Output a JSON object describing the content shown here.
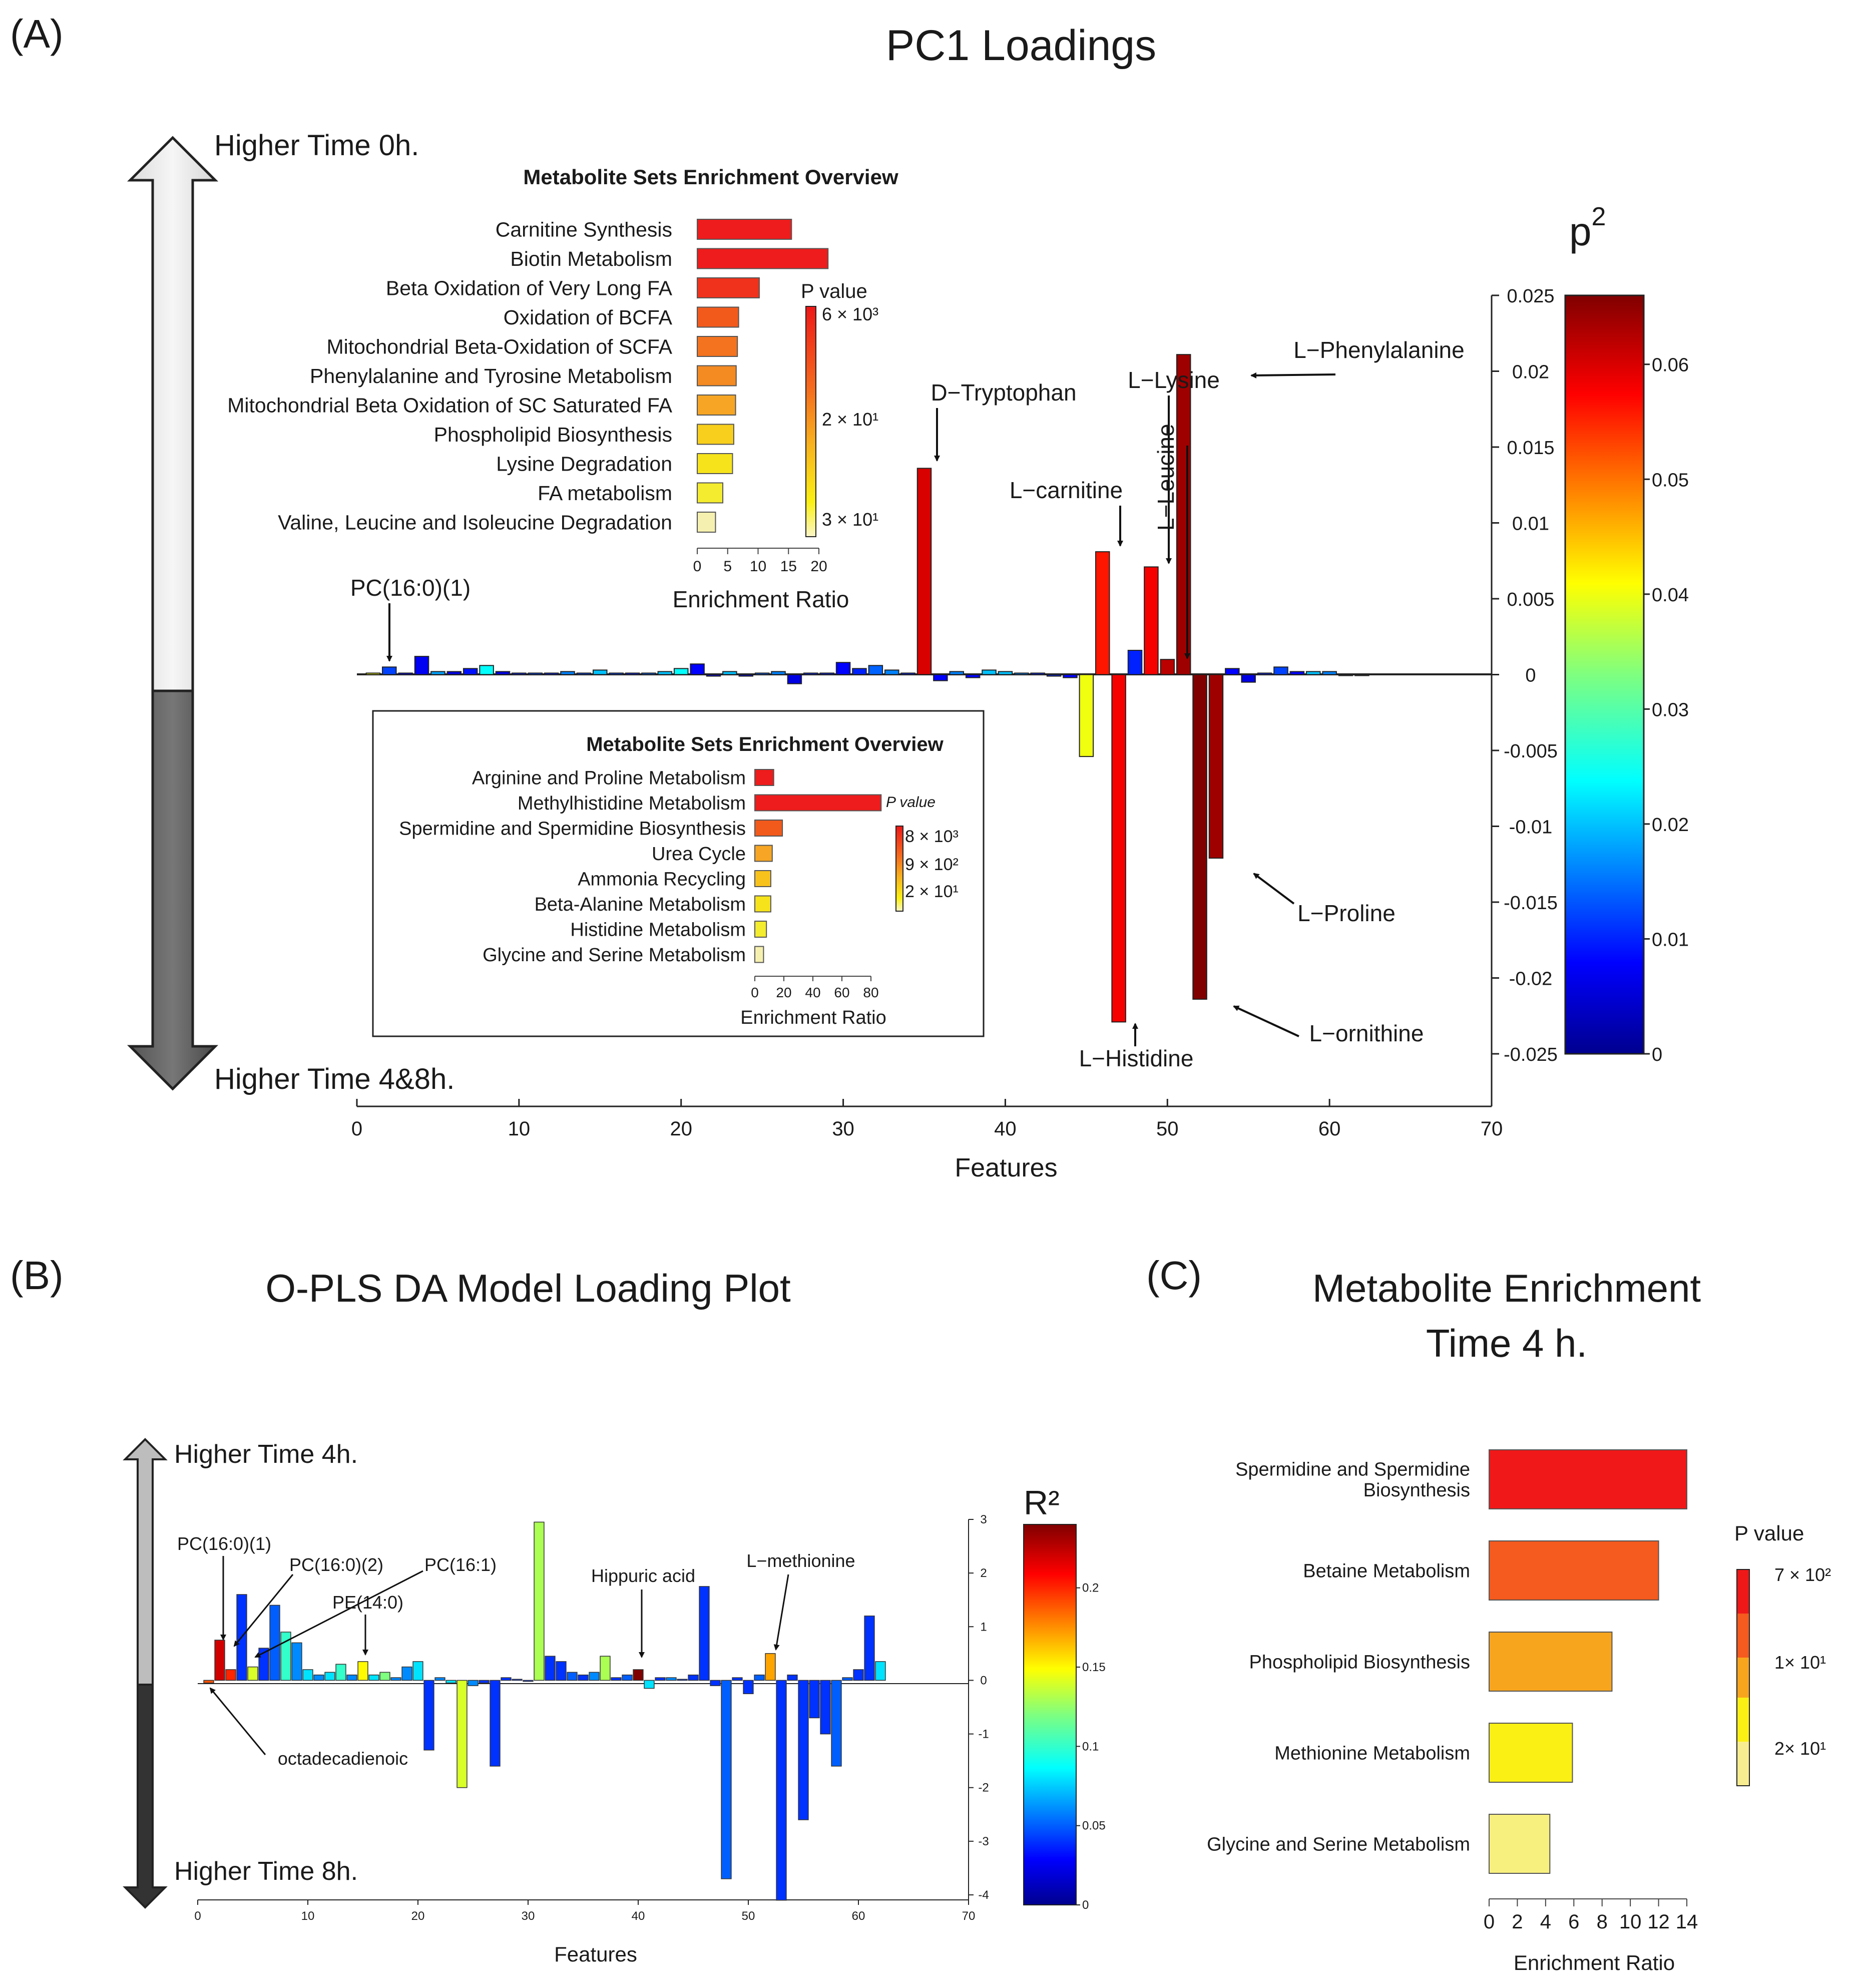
{
  "panels": {
    "a_label": "(A)",
    "b_label": "(B)",
    "c_label": "(C)"
  },
  "chart_data": [
    {
      "id": "pc1",
      "type": "bar",
      "title": "PC1 Loadings",
      "xlabel": "Features",
      "ylabel": "",
      "xlim": [
        0,
        70
      ],
      "ylim": [
        -0.025,
        0.025
      ],
      "xticks": [
        0,
        10,
        20,
        30,
        40,
        50,
        60,
        70
      ],
      "yticks": [
        -0.025,
        -0.02,
        -0.015,
        -0.01,
        -0.005,
        0,
        0.005,
        0.01,
        0.015,
        0.02,
        0.025
      ],
      "ytick_labels": [
        "-0.025",
        "-0.02",
        "-0.015",
        "-0.01",
        "-0.005",
        "0",
        "0.005",
        "0.01",
        "0.015",
        "0.02",
        "0.025"
      ],
      "top_arrow_label": "Higher Time 0h.",
      "bottom_arrow_label": "Higher Time 4&8h.",
      "colorbar": {
        "title": "p",
        "title_sup": "2",
        "range": [
          0,
          0.066
        ],
        "ticks": [
          0,
          0.01,
          0.02,
          0.03,
          0.04,
          0.05,
          0.06
        ],
        "tick_labels": [
          "0",
          "0.01",
          "0.02",
          "0.03",
          "0.04",
          "0.05",
          "0.06"
        ]
      },
      "x": [
        1,
        2,
        3,
        4,
        5,
        6,
        7,
        8,
        9,
        10,
        11,
        12,
        13,
        14,
        15,
        16,
        17,
        18,
        19,
        20,
        21,
        22,
        23,
        24,
        25,
        26,
        27,
        28,
        29,
        30,
        31,
        32,
        33,
        34,
        35,
        36,
        37,
        38,
        39,
        40,
        41,
        42,
        43,
        44,
        45,
        46,
        47,
        48,
        49,
        50,
        51,
        52,
        53,
        54,
        55,
        56,
        57,
        58,
        59,
        60,
        61,
        62
      ],
      "values": [
        0.0001,
        0.0005,
        0.0001,
        0.0012,
        0.0002,
        0.0002,
        0.0004,
        0.0006,
        0.0002,
        0.0001,
        0.0001,
        0.0001,
        0.0002,
        0.0001,
        0.0003,
        0.0001,
        0.0001,
        0.0001,
        0.0002,
        0.0004,
        0.0007,
        -0.0001,
        0.0002,
        -0.0001,
        0.0001,
        0.0002,
        -0.0006,
        0.0001,
        0.0001,
        0.0008,
        0.0004,
        0.0006,
        0.0003,
        0.0001,
        0.0136,
        -0.0004,
        0.0002,
        -0.0002,
        0.0003,
        0.0002,
        0.0001,
        0.0001,
        -0.0001,
        -0.0002,
        -0.0054,
        0.0081,
        -0.0229,
        0.0016,
        0.0071,
        0.001,
        0.0211,
        -0.0214,
        -0.0121,
        0.0004,
        -0.0005,
        0.0001,
        0.0005,
        0.0002,
        0.0002,
        0.0002,
        0,
        0
      ],
      "colors": [
        0.04,
        0.012,
        0.008,
        0.007,
        0.018,
        0.006,
        0.009,
        0.024,
        0.006,
        0.01,
        0.012,
        0.01,
        0.016,
        0.012,
        0.02,
        0.012,
        0.01,
        0.014,
        0.02,
        0.024,
        0.008,
        0.008,
        0.02,
        0.006,
        0.014,
        0.016,
        0.006,
        0.01,
        0.01,
        0.008,
        0.01,
        0.014,
        0.016,
        0.01,
        0.06,
        0.008,
        0.016,
        0.008,
        0.02,
        0.02,
        0.016,
        0.01,
        0.01,
        0.008,
        0.04,
        0.056,
        0.058,
        0.01,
        0.058,
        0.062,
        0.064,
        0.066,
        0.064,
        0.008,
        0.006,
        0.01,
        0.012,
        0.008,
        0.02,
        0.016,
        0.012,
        0.012
      ],
      "annotations": [
        {
          "text": "PC(16:0)(1)",
          "feature": 2
        },
        {
          "text": "D−Tryptophan",
          "feature": 36
        },
        {
          "text": "L−carnitine",
          "feature": 47
        },
        {
          "text": "L−Lysine",
          "feature": 50
        },
        {
          "text": "L−Leucine",
          "feature": 51
        },
        {
          "text": "L−Phenylalanine",
          "feature": 54
        },
        {
          "text": "L−Proline",
          "feature": 55
        },
        {
          "text": "L−ornithine",
          "feature": 53
        },
        {
          "text": "L−Histidine",
          "feature": 48
        }
      ]
    },
    {
      "id": "enrich_top",
      "type": "bar",
      "orientation": "horizontal",
      "title": "Metabolite Sets Enrichment Overview",
      "xlabel": "Enrichment Ratio",
      "xlim": [
        0,
        20
      ],
      "xticks": [
        0,
        5,
        10,
        15,
        20
      ],
      "categories": [
        "Carnitine Synthesis",
        "Biotin Metabolism",
        "Beta Oxidation of Very Long FA",
        "Oxidation of BCFA",
        "Mitochondrial Beta-Oxidation of SCFA",
        "Phenylalanine and Tyrosine Metabolism",
        "Mitochondrial Beta Oxidation of SC Saturated FA",
        "Phospholipid Biosynthesis",
        "Lysine Degradation",
        "FA metabolism",
        "Valine, Leucine and Isoleucine Degradation"
      ],
      "values": [
        15.5,
        21.5,
        10.2,
        6.8,
        6.6,
        6.4,
        6.3,
        6.0,
        5.8,
        4.2,
        3.0
      ],
      "colors": [
        "#ee1c1c",
        "#ee1c1c",
        "#f0321c",
        "#f25a1c",
        "#f3731f",
        "#f48a22",
        "#f6a624",
        "#f8cf1c",
        "#f6e31c",
        "#f4ec2e",
        "#f6f0b0"
      ],
      "pvalue_title": "P value",
      "pvalue_ticks": [
        "6 × 10³",
        "2 × 10¹",
        "3 × 10¹"
      ]
    },
    {
      "id": "enrich_mid",
      "type": "bar",
      "orientation": "horizontal",
      "title": "Metabolite Sets Enrichment Overview",
      "xlabel": "Enrichment Ratio",
      "xlim": [
        0,
        80
      ],
      "xticks": [
        0,
        20,
        40,
        60,
        80
      ],
      "categories": [
        "Arginine and Proline Metabolism",
        "Methylhistidine Metabolism",
        "Spermidine and Spermidine Biosynthesis",
        "Urea Cycle",
        "Ammonia Recycling",
        "Beta-Alanine Metabolism",
        "Histidine Metabolism",
        "Glycine and Serine Metabolism"
      ],
      "values": [
        13,
        87,
        19,
        12,
        11,
        11,
        8,
        6
      ],
      "colors": [
        "#ee1c1c",
        "#ee1c1c",
        "#f25a1c",
        "#f6a624",
        "#f8c21c",
        "#f6e31c",
        "#f4ec2e",
        "#f6f0b0"
      ],
      "pvalue_title": "P value",
      "pvalue_ticks": [
        "8 × 10³",
        "9 × 10²",
        "2 × 10¹"
      ]
    },
    {
      "id": "opls",
      "type": "bar",
      "title": "O-PLS DA Model Loading Plot",
      "xlabel": "Features",
      "xlim": [
        0,
        70
      ],
      "ylim": [
        -4,
        3
      ],
      "xticks": [
        0,
        10,
        20,
        30,
        40,
        50,
        60,
        70
      ],
      "yticks": [
        -4,
        -3,
        -2,
        -1,
        0,
        1,
        2,
        3
      ],
      "top_arrow_label": "Higher Time 4h.",
      "bottom_arrow_label": "Higher Time 8h.",
      "colorbar": {
        "title": "R²",
        "range": [
          0,
          0.24
        ],
        "ticks": [
          0,
          0.05,
          0.1,
          0.15,
          0.2
        ],
        "tick_labels": [
          "0",
          "0.05",
          "0.1",
          "0.15",
          "0.2"
        ]
      },
      "x": [
        1,
        2,
        3,
        4,
        5,
        6,
        7,
        8,
        9,
        10,
        11,
        12,
        13,
        14,
        15,
        16,
        17,
        18,
        19,
        20,
        21,
        22,
        23,
        24,
        25,
        26,
        27,
        28,
        29,
        30,
        31,
        32,
        33,
        34,
        35,
        36,
        37,
        38,
        39,
        40,
        41,
        42,
        43,
        44,
        45,
        46,
        47,
        48,
        49,
        50,
        51,
        52,
        53,
        54,
        55,
        56,
        57,
        58,
        59,
        60,
        61,
        62
      ],
      "values": [
        -0.05,
        0.75,
        0.2,
        1.6,
        0.25,
        0.6,
        1.4,
        0.9,
        0.7,
        0.2,
        0.1,
        0.15,
        0.3,
        0.1,
        0.35,
        0.1,
        0.15,
        0.05,
        0.25,
        0.35,
        -1.3,
        0.05,
        -0.05,
        -2.0,
        -0.1,
        -0.05,
        -1.6,
        0.05,
        0.02,
        -0.02,
        2.95,
        0.45,
        0.35,
        0.15,
        0.1,
        0.15,
        0.45,
        0.05,
        0.1,
        0.2,
        -0.15,
        0.05,
        0.05,
        0.02,
        0.1,
        1.75,
        -0.1,
        -3.7,
        0.05,
        -0.25,
        0.1,
        0.5,
        -4.1,
        0.1,
        -2.6,
        -0.7,
        -1.0,
        -1.6,
        0.05,
        0.2,
        1.2,
        0.35
      ],
      "colors": [
        0.19,
        0.22,
        0.2,
        0.04,
        0.14,
        0.04,
        0.05,
        0.1,
        0.06,
        0.08,
        0.06,
        0.08,
        0.1,
        0.06,
        0.15,
        0.08,
        0.12,
        0.06,
        0.06,
        0.08,
        0.04,
        0.06,
        0.08,
        0.14,
        0.06,
        0.04,
        0.04,
        0.04,
        0.04,
        0.04,
        0.13,
        0.04,
        0.04,
        0.05,
        0.04,
        0.06,
        0.13,
        0.04,
        0.05,
        0.24,
        0.08,
        0.04,
        0.06,
        0.04,
        0.04,
        0.04,
        0.04,
        0.05,
        0.04,
        0.04,
        0.05,
        0.17,
        0.04,
        0.04,
        0.04,
        0.04,
        0.04,
        0.05,
        0.05,
        0.04,
        0.04,
        0.08
      ],
      "annotations": [
        {
          "text": "PC(16:0)(1)",
          "feature": 2
        },
        {
          "text": "PC(16:0)(2)",
          "feature": 3
        },
        {
          "text": "PC(16:1)",
          "feature": 5
        },
        {
          "text": "PE(14:0)",
          "feature": 15
        },
        {
          "text": "octadecadienoic",
          "feature": 1
        },
        {
          "text": "Hippuric acid",
          "feature": 40
        },
        {
          "text": "L−methionine",
          "feature": 52
        }
      ]
    },
    {
      "id": "enrich_c",
      "type": "bar",
      "orientation": "horizontal",
      "title": "Metabolite Enrichment",
      "subtitle": "Time 4 h.",
      "xlabel": "Enrichment Ratio",
      "xlim": [
        0,
        14
      ],
      "xticks": [
        0,
        2,
        4,
        6,
        8,
        10,
        12,
        14
      ],
      "categories": [
        "Spermidine and Spermidine Biosynthesis",
        "Betaine Metabolism",
        "Phospholipid Biosynthesis",
        "Methionine Metabolism",
        "Glycine and Serine Metabolism"
      ],
      "category_lines": [
        [
          "Spermidine and Spermidine",
          "Biosynthesis"
        ],
        [
          "Betaine Metabolism"
        ],
        [
          "Phospholipid Biosynthesis"
        ],
        [
          "Methionine Metabolism"
        ],
        [
          "Glycine and Serine Metabolism"
        ]
      ],
      "values": [
        14,
        12,
        8.7,
        5.9,
        4.3
      ],
      "colors": [
        "#f01818",
        "#f55a1e",
        "#f8a51e",
        "#fbf014",
        "#f8f07e"
      ],
      "pvalue_title": "P value",
      "pvalue_ticks": [
        "7 × 10²",
        "1× 10¹",
        "2× 10¹"
      ]
    }
  ]
}
